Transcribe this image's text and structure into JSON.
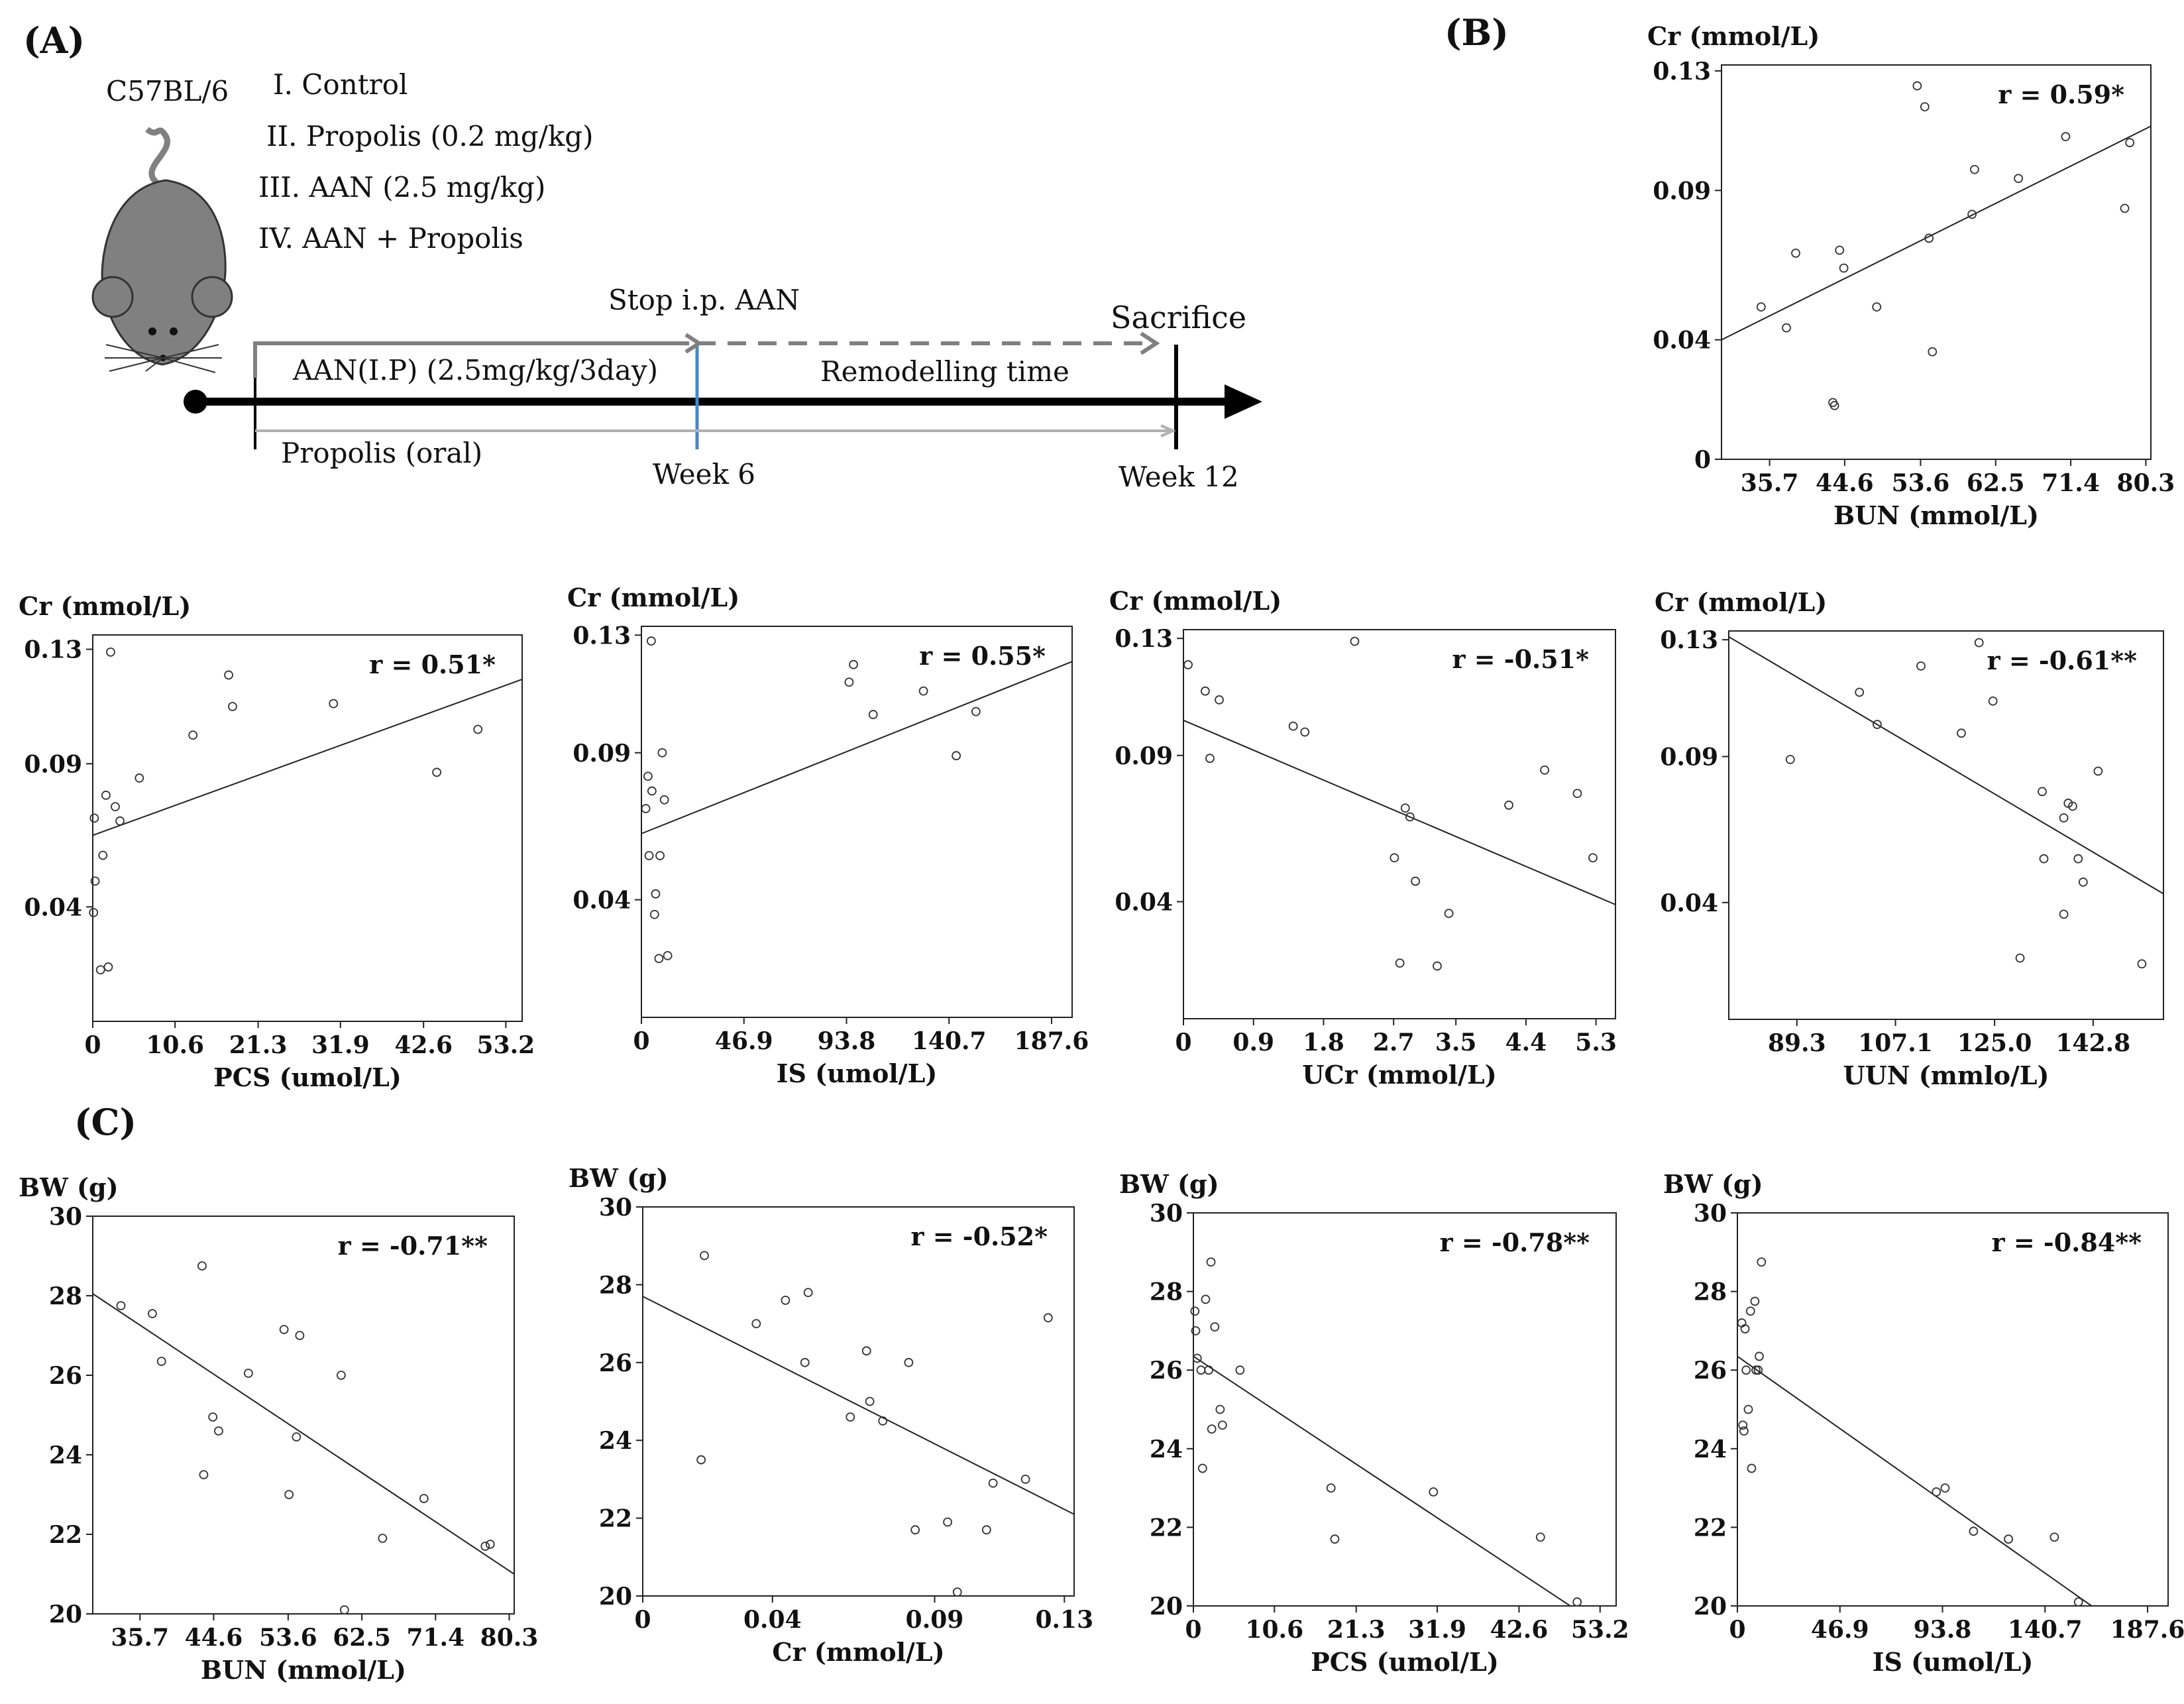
{
  "panel_labels": {
    "a": "(A)",
    "b": "(B)",
    "c": "(C)"
  },
  "schematic": {
    "strain": "C57BL/6",
    "groups": [
      "I. Control",
      "II. Propolis (0.2 mg/kg)",
      "III. AAN (2.5 mg/kg)",
      "IV. AAN + Propolis"
    ],
    "stop_label": "Stop i.p. AAN",
    "sacrifice_label": "Sacrifice",
    "aan_label": "AAN(I.P) (2.5mg/kg/3day)",
    "remodelling_label": "Remodelling time",
    "propolis_label": "Propolis (oral)",
    "week6_label": "Week 6",
    "week12_label": "Week 12"
  },
  "chart_data": [
    {
      "id": "B-BUN",
      "type": "scatter",
      "panel": "B",
      "ylabel": "Cr (mmol/L)",
      "xlabel": "BUN (mmol/L)",
      "r_label": "r = 0.59*",
      "xlim": [
        30,
        80.9
      ],
      "ylim": [
        0,
        0.132
      ],
      "xticks": [
        35.7,
        44.6,
        53.6,
        62.5,
        71.4,
        80.3
      ],
      "xtick_labels": [
        "35.7",
        "44.6",
        "53.6",
        "62.5",
        "71.4",
        "80.3"
      ],
      "yticks": [
        0,
        0.04,
        0.09,
        0.13
      ],
      "ytick_labels": [
        "0",
        "0.04",
        "0.09",
        "0.13"
      ],
      "fit": [
        [
          30,
          0.04
        ],
        [
          80.9,
          0.1115
        ]
      ],
      "points": [
        [
          34.7,
          0.051
        ],
        [
          37.7,
          0.044
        ],
        [
          38.8,
          0.069
        ],
        [
          43.2,
          0.019
        ],
        [
          43.4,
          0.018
        ],
        [
          44.0,
          0.07
        ],
        [
          44.5,
          0.064
        ],
        [
          48.4,
          0.051
        ],
        [
          53.2,
          0.125
        ],
        [
          54.1,
          0.118
        ],
        [
          54.6,
          0.074
        ],
        [
          55.0,
          0.036
        ],
        [
          59.7,
          0.082
        ],
        [
          60.0,
          0.097
        ],
        [
          65.2,
          0.094
        ],
        [
          70.8,
          0.108
        ],
        [
          77.8,
          0.084
        ],
        [
          78.4,
          0.106
        ]
      ]
    },
    {
      "id": "B-PCS",
      "type": "scatter",
      "panel": "B",
      "ylabel": "Cr (mmol/L)",
      "xlabel": "PCS (umol/L)",
      "r_label": "r = 0.51*",
      "xlim": [
        0,
        55.3
      ],
      "ylim": [
        0,
        0.135
      ],
      "xticks": [
        0,
        10.6,
        21.3,
        31.9,
        42.6,
        53.2
      ],
      "xtick_labels": [
        "0",
        "10.6",
        "21.3",
        "31.9",
        "42.6",
        "53.2"
      ],
      "yticks": [
        0.04,
        0.09,
        0.13
      ],
      "ytick_labels": [
        "0.04",
        "0.09",
        "0.13"
      ],
      "fit": [
        [
          0,
          0.065
        ],
        [
          55.3,
          0.1195
        ]
      ],
      "points": [
        [
          0.1,
          0.038
        ],
        [
          0.2,
          0.071
        ],
        [
          0.3,
          0.049
        ],
        [
          1.0,
          0.018
        ],
        [
          1.3,
          0.058
        ],
        [
          1.7,
          0.079
        ],
        [
          2.0,
          0.019
        ],
        [
          2.3,
          0.129
        ],
        [
          2.9,
          0.075
        ],
        [
          3.5,
          0.07
        ],
        [
          6.0,
          0.085
        ],
        [
          12.9,
          0.1
        ],
        [
          17.5,
          0.121
        ],
        [
          18.0,
          0.11
        ],
        [
          31.0,
          0.111
        ],
        [
          44.3,
          0.087
        ],
        [
          49.6,
          0.102
        ]
      ]
    },
    {
      "id": "B-IS",
      "type": "scatter",
      "panel": "B",
      "ylabel": "Cr (mmol/L)",
      "xlabel": "IS (umol/L)",
      "r_label": "r = 0.55*",
      "xlim": [
        0,
        197
      ],
      "ylim": [
        0,
        0.133
      ],
      "xticks": [
        0,
        46.9,
        93.8,
        140.7,
        187.6
      ],
      "xtick_labels": [
        "0",
        "46.9",
        "93.8",
        "140.7",
        "187.6"
      ],
      "yticks": [
        0.04,
        0.09,
        0.13
      ],
      "ytick_labels": [
        "0.04",
        "0.09",
        "0.13"
      ],
      "fit": [
        [
          0,
          0.0625
        ],
        [
          197,
          0.121
        ]
      ],
      "points": [
        [
          2.0,
          0.071
        ],
        [
          3.0,
          0.082
        ],
        [
          3.5,
          0.055
        ],
        [
          4.5,
          0.128
        ],
        [
          4.8,
          0.077
        ],
        [
          6.0,
          0.035
        ],
        [
          6.5,
          0.042
        ],
        [
          8.0,
          0.02
        ],
        [
          8.5,
          0.055
        ],
        [
          9.5,
          0.09
        ],
        [
          10.5,
          0.074
        ],
        [
          12.0,
          0.021
        ],
        [
          95.0,
          0.114
        ],
        [
          97.0,
          0.12
        ],
        [
          106.0,
          0.103
        ],
        [
          129.0,
          0.111
        ],
        [
          144.0,
          0.089
        ],
        [
          153.0,
          0.104
        ]
      ]
    },
    {
      "id": "B-UCr",
      "type": "scatter",
      "panel": "B",
      "ylabel": "Cr (mmol/L)",
      "xlabel": "UCr (mmol/L)",
      "r_label": "r = -0.51*",
      "xlim": [
        0,
        5.55
      ],
      "ylim": [
        0,
        0.133
      ],
      "xticks": [
        0,
        0.9,
        1.8,
        2.7,
        3.5,
        4.4,
        5.3
      ],
      "xtick_labels": [
        "0",
        "0.9",
        "1.8",
        "2.7",
        "3.5",
        "4.4",
        "5.3"
      ],
      "yticks": [
        0.04,
        0.09,
        0.13
      ],
      "ytick_labels": [
        "0.04",
        "0.09",
        "0.13"
      ],
      "fit": [
        [
          0,
          0.102
        ],
        [
          5.55,
          0.039
        ]
      ],
      "points": [
        [
          0.06,
          0.121
        ],
        [
          0.28,
          0.112
        ],
        [
          0.34,
          0.089
        ],
        [
          0.46,
          0.109
        ],
        [
          1.41,
          0.1
        ],
        [
          1.56,
          0.098
        ],
        [
          2.2,
          0.129
        ],
        [
          2.71,
          0.055
        ],
        [
          2.78,
          0.019
        ],
        [
          2.85,
          0.072
        ],
        [
          2.91,
          0.069
        ],
        [
          2.98,
          0.047
        ],
        [
          3.26,
          0.018
        ],
        [
          3.41,
          0.036
        ],
        [
          4.18,
          0.073
        ],
        [
          4.64,
          0.085
        ],
        [
          5.06,
          0.077
        ],
        [
          5.26,
          0.055
        ]
      ]
    },
    {
      "id": "B-UUN",
      "type": "scatter",
      "panel": "B",
      "ylabel": "Cr (mmol/L)",
      "xlabel": "UUN (mmlo/L)",
      "r_label": "r = -0.61**",
      "xlim": [
        77,
        155.5
      ],
      "ylim": [
        0,
        0.133
      ],
      "xticks": [
        89.3,
        107.1,
        125.0,
        142.8
      ],
      "xtick_labels": [
        "89.3",
        "107.1",
        "125.0",
        "142.8"
      ],
      "yticks": [
        0.04,
        0.09,
        0.13
      ],
      "ytick_labels": [
        "0.04",
        "0.09",
        "0.13"
      ],
      "fit": [
        [
          77,
          0.131
        ],
        [
          155.5,
          0.043
        ]
      ],
      "points": [
        [
          88.1,
          0.089
        ],
        [
          100.6,
          0.112
        ],
        [
          103.8,
          0.101
        ],
        [
          111.7,
          0.121
        ],
        [
          119.0,
          0.098
        ],
        [
          122.2,
          0.129
        ],
        [
          124.7,
          0.109
        ],
        [
          129.6,
          0.021
        ],
        [
          133.6,
          0.078
        ],
        [
          133.9,
          0.055
        ],
        [
          137.5,
          0.036
        ],
        [
          137.5,
          0.069
        ],
        [
          138.3,
          0.074
        ],
        [
          139.1,
          0.073
        ],
        [
          140.1,
          0.055
        ],
        [
          141.0,
          0.047
        ],
        [
          143.7,
          0.085
        ],
        [
          151.6,
          0.019
        ]
      ]
    },
    {
      "id": "C-BUN",
      "type": "scatter",
      "panel": "C",
      "ylabel": "BW (g)",
      "xlabel": "BUN (mmol/L)",
      "r_label": "r = -0.71**",
      "xlim": [
        30,
        80.9
      ],
      "ylim": [
        20,
        30
      ],
      "xticks": [
        35.7,
        44.6,
        53.6,
        62.5,
        71.4,
        80.3
      ],
      "xtick_labels": [
        "35.7",
        "44.6",
        "53.6",
        "62.5",
        "71.4",
        "80.3"
      ],
      "yticks": [
        20,
        22,
        24,
        26,
        28,
        30
      ],
      "ytick_labels": [
        "20",
        "22",
        "24",
        "26",
        "28",
        "30"
      ],
      "fit": [
        [
          30,
          28.05
        ],
        [
          80.9,
          21.0
        ]
      ],
      "points": [
        [
          33.4,
          27.75
        ],
        [
          37.2,
          27.55
        ],
        [
          38.3,
          26.35
        ],
        [
          43.2,
          28.75
        ],
        [
          43.4,
          23.5
        ],
        [
          44.5,
          24.95
        ],
        [
          45.2,
          24.6
        ],
        [
          48.8,
          26.05
        ],
        [
          53.1,
          27.15
        ],
        [
          53.7,
          23.0
        ],
        [
          54.6,
          24.45
        ],
        [
          55.0,
          27.0
        ],
        [
          60.0,
          26.0
        ],
        [
          60.4,
          20.1
        ],
        [
          65.0,
          21.9
        ],
        [
          70.0,
          22.9
        ],
        [
          77.4,
          21.7
        ],
        [
          78.0,
          21.75
        ]
      ]
    },
    {
      "id": "C-Cr",
      "type": "scatter",
      "panel": "C",
      "ylabel": "BW (g)",
      "xlabel": "Cr (mmol/L)",
      "r_label": "r = -0.52*",
      "xlim": [
        0,
        0.133
      ],
      "ylim": [
        20,
        30
      ],
      "xticks": [
        0,
        0.04,
        0.09,
        0.13
      ],
      "xtick_labels": [
        "0",
        "0.04",
        "0.09",
        "0.13"
      ],
      "yticks": [
        20,
        22,
        24,
        26,
        28,
        30
      ],
      "ytick_labels": [
        "20",
        "22",
        "24",
        "26",
        "28",
        "30"
      ],
      "fit": [
        [
          0,
          27.7
        ],
        [
          0.133,
          22.1
        ]
      ],
      "points": [
        [
          0.018,
          23.5
        ],
        [
          0.019,
          28.75
        ],
        [
          0.035,
          27.0
        ],
        [
          0.044,
          27.6
        ],
        [
          0.05,
          26.0
        ],
        [
          0.051,
          27.8
        ],
        [
          0.064,
          24.6
        ],
        [
          0.069,
          26.3
        ],
        [
          0.07,
          25.0
        ],
        [
          0.074,
          24.5
        ],
        [
          0.082,
          26.0
        ],
        [
          0.084,
          21.7
        ],
        [
          0.094,
          21.9
        ],
        [
          0.097,
          20.1
        ],
        [
          0.106,
          21.7
        ],
        [
          0.108,
          22.9
        ],
        [
          0.118,
          23.0
        ],
        [
          0.125,
          27.15
        ]
      ]
    },
    {
      "id": "C-PCS",
      "type": "scatter",
      "panel": "C",
      "ylabel": "BW (g)",
      "xlabel": "PCS (umol/L)",
      "r_label": "r = -0.78**",
      "xlim": [
        0,
        55.3
      ],
      "ylim": [
        20,
        30
      ],
      "xticks": [
        0,
        10.6,
        21.3,
        31.9,
        42.6,
        53.2
      ],
      "xtick_labels": [
        "0",
        "10.6",
        "21.3",
        "31.9",
        "42.6",
        "53.2"
      ],
      "yticks": [
        20,
        22,
        24,
        26,
        28,
        30
      ],
      "ytick_labels": [
        "20",
        "22",
        "24",
        "26",
        "28",
        "30"
      ],
      "fit": [
        [
          0,
          26.35
        ],
        [
          49.3,
          20.0
        ]
      ],
      "points": [
        [
          0.2,
          27.5
        ],
        [
          0.3,
          27.0
        ],
        [
          0.5,
          26.3
        ],
        [
          1.0,
          26.0
        ],
        [
          1.2,
          23.5
        ],
        [
          1.6,
          27.8
        ],
        [
          2.0,
          26.0
        ],
        [
          2.3,
          28.75
        ],
        [
          2.4,
          24.5
        ],
        [
          2.8,
          27.1
        ],
        [
          3.5,
          25.0
        ],
        [
          3.8,
          24.6
        ],
        [
          6.1,
          26.0
        ],
        [
          18.0,
          23.0
        ],
        [
          18.5,
          21.7
        ],
        [
          31.4,
          22.9
        ],
        [
          45.4,
          21.75
        ],
        [
          50.2,
          20.1
        ]
      ]
    },
    {
      "id": "C-IS",
      "type": "scatter",
      "panel": "C",
      "ylabel": "BW (g)",
      "xlabel": "IS (umol/L)",
      "r_label": "r = -0.84**",
      "xlim": [
        0,
        197
      ],
      "ylim": [
        20,
        30
      ],
      "xticks": [
        0,
        46.9,
        93.8,
        140.7,
        187.6
      ],
      "xtick_labels": [
        "0",
        "46.9",
        "93.8",
        "140.7",
        "187.6"
      ],
      "yticks": [
        20,
        22,
        24,
        26,
        28,
        30
      ],
      "ytick_labels": [
        "20",
        "22",
        "24",
        "26",
        "28",
        "30"
      ],
      "fit": [
        [
          0,
          26.35
        ],
        [
          162,
          20.0
        ]
      ],
      "points": [
        [
          2.0,
          27.2
        ],
        [
          2.5,
          24.6
        ],
        [
          3.0,
          24.45
        ],
        [
          3.5,
          27.05
        ],
        [
          4.0,
          26.0
        ],
        [
          5.0,
          25.0
        ],
        [
          6.0,
          27.5
        ],
        [
          6.5,
          23.5
        ],
        [
          8.0,
          27.75
        ],
        [
          8.5,
          26.0
        ],
        [
          9.5,
          26.0
        ],
        [
          10.0,
          26.35
        ],
        [
          11.0,
          28.75
        ],
        [
          91.0,
          22.9
        ],
        [
          95.0,
          23.0
        ],
        [
          108.0,
          21.9
        ],
        [
          124.0,
          21.7
        ],
        [
          145.0,
          21.75
        ],
        [
          156.0,
          20.1
        ]
      ]
    }
  ]
}
